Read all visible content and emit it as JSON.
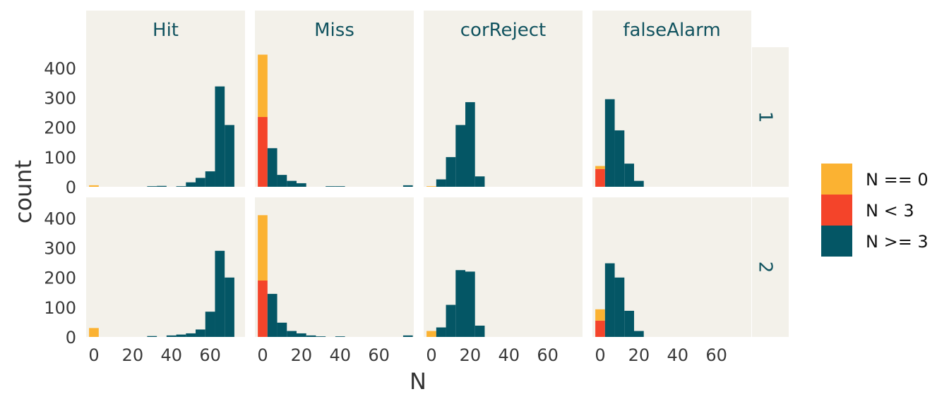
{
  "chart_data": {
    "type": "bar",
    "subtype": "faceted-stacked-histogram",
    "xlabel": "N",
    "ylabel": "count",
    "x_ticks": [
      0,
      20,
      40,
      60
    ],
    "y_ticks": [
      0,
      100,
      200,
      300,
      400
    ],
    "xlim": [
      -4,
      78
    ],
    "ylim": [
      0,
      470
    ],
    "bin_width": 5,
    "bin_centers": [
      0,
      5,
      10,
      15,
      20,
      25,
      30,
      35,
      40,
      45,
      50,
      55,
      60,
      65,
      70,
      75
    ],
    "columns": [
      "Hit",
      "Miss",
      "corReject",
      "falseAlarm"
    ],
    "rows": [
      "1",
      "2"
    ],
    "legend": {
      "position": "right",
      "entries": [
        {
          "label": "N == 0",
          "color": "#fbb232"
        },
        {
          "label": "N < 3",
          "color": "#f4442a"
        },
        {
          "label": "N >= 3",
          "color": "#045665"
        }
      ]
    },
    "panel_background": "#f3f1ea",
    "panels": [
      {
        "column": "Hit",
        "row": "1",
        "N == 0": [
          5,
          0,
          0,
          0,
          0,
          0,
          0,
          0,
          0,
          0,
          0,
          0,
          0,
          0,
          0,
          0
        ],
        "N < 3": [
          0,
          0,
          0,
          0,
          0,
          0,
          0,
          0,
          0,
          0,
          0,
          0,
          0,
          0,
          0,
          0
        ],
        "N >= 3": [
          0,
          0,
          0,
          0,
          0,
          0,
          2,
          3,
          0,
          2,
          15,
          30,
          52,
          338,
          208,
          0
        ]
      },
      {
        "column": "Miss",
        "row": "1",
        "N == 0": [
          210,
          0,
          0,
          0,
          0,
          0,
          0,
          0,
          0,
          0,
          0,
          0,
          0,
          0,
          0,
          0
        ],
        "N < 3": [
          235,
          0,
          0,
          0,
          0,
          0,
          0,
          0,
          0,
          0,
          0,
          0,
          0,
          0,
          0,
          0
        ],
        "N >= 3": [
          0,
          130,
          40,
          20,
          12,
          0,
          0,
          2,
          2,
          0,
          0,
          0,
          0,
          0,
          0,
          5
        ]
      },
      {
        "column": "corReject",
        "row": "1",
        "N == 0": [
          2,
          0,
          0,
          0,
          0,
          0,
          0,
          0,
          0,
          0,
          0,
          0,
          0,
          0,
          0,
          0
        ],
        "N < 3": [
          0,
          0,
          0,
          0,
          0,
          0,
          0,
          0,
          0,
          0,
          0,
          0,
          0,
          0,
          0,
          0
        ],
        "N >= 3": [
          0,
          25,
          100,
          208,
          285,
          35,
          0,
          0,
          0,
          0,
          0,
          0,
          0,
          0,
          0,
          0
        ]
      },
      {
        "column": "falseAlarm",
        "row": "1",
        "N == 0": [
          10,
          0,
          0,
          0,
          0,
          0,
          0,
          0,
          0,
          0,
          0,
          0,
          0,
          0,
          0,
          0
        ],
        "N < 3": [
          60,
          0,
          0,
          0,
          0,
          0,
          0,
          0,
          0,
          0,
          0,
          0,
          0,
          0,
          0,
          0
        ],
        "N >= 3": [
          0,
          295,
          190,
          78,
          20,
          0,
          0,
          0,
          0,
          0,
          0,
          0,
          0,
          0,
          0,
          0
        ]
      },
      {
        "column": "Hit",
        "row": "2",
        "N == 0": [
          30,
          0,
          0,
          0,
          0,
          0,
          0,
          0,
          0,
          0,
          0,
          0,
          0,
          0,
          0,
          0
        ],
        "N < 3": [
          0,
          0,
          0,
          0,
          0,
          0,
          0,
          0,
          0,
          0,
          0,
          0,
          0,
          0,
          0,
          0
        ],
        "N >= 3": [
          0,
          0,
          0,
          0,
          0,
          0,
          3,
          0,
          5,
          8,
          12,
          25,
          85,
          290,
          200,
          0
        ]
      },
      {
        "column": "Miss",
        "row": "2",
        "N == 0": [
          220,
          0,
          0,
          0,
          0,
          0,
          0,
          0,
          0,
          0,
          0,
          0,
          0,
          0,
          0,
          0
        ],
        "N < 3": [
          190,
          0,
          0,
          0,
          0,
          0,
          0,
          0,
          0,
          0,
          0,
          0,
          0,
          0,
          0,
          0
        ],
        "N >= 3": [
          0,
          145,
          48,
          20,
          12,
          5,
          2,
          0,
          2,
          0,
          0,
          0,
          0,
          0,
          0,
          5
        ]
      },
      {
        "column": "corReject",
        "row": "2",
        "N == 0": [
          20,
          0,
          0,
          0,
          0,
          0,
          0,
          0,
          0,
          0,
          0,
          0,
          0,
          0,
          0,
          0
        ],
        "N < 3": [
          0,
          0,
          0,
          0,
          0,
          0,
          0,
          0,
          0,
          0,
          0,
          0,
          0,
          0,
          0,
          0
        ],
        "N >= 3": [
          0,
          32,
          108,
          225,
          220,
          38,
          0,
          0,
          0,
          0,
          0,
          0,
          0,
          0,
          0,
          0
        ]
      },
      {
        "column": "falseAlarm",
        "row": "2",
        "N == 0": [
          38,
          0,
          0,
          0,
          0,
          0,
          0,
          0,
          0,
          0,
          0,
          0,
          0,
          0,
          0,
          0
        ],
        "N < 3": [
          55,
          0,
          0,
          0,
          0,
          0,
          0,
          0,
          0,
          0,
          0,
          0,
          0,
          0,
          0,
          0
        ],
        "N >= 3": [
          0,
          248,
          200,
          88,
          20,
          0,
          0,
          0,
          0,
          0,
          0,
          0,
          0,
          0,
          0,
          0
        ]
      }
    ]
  }
}
